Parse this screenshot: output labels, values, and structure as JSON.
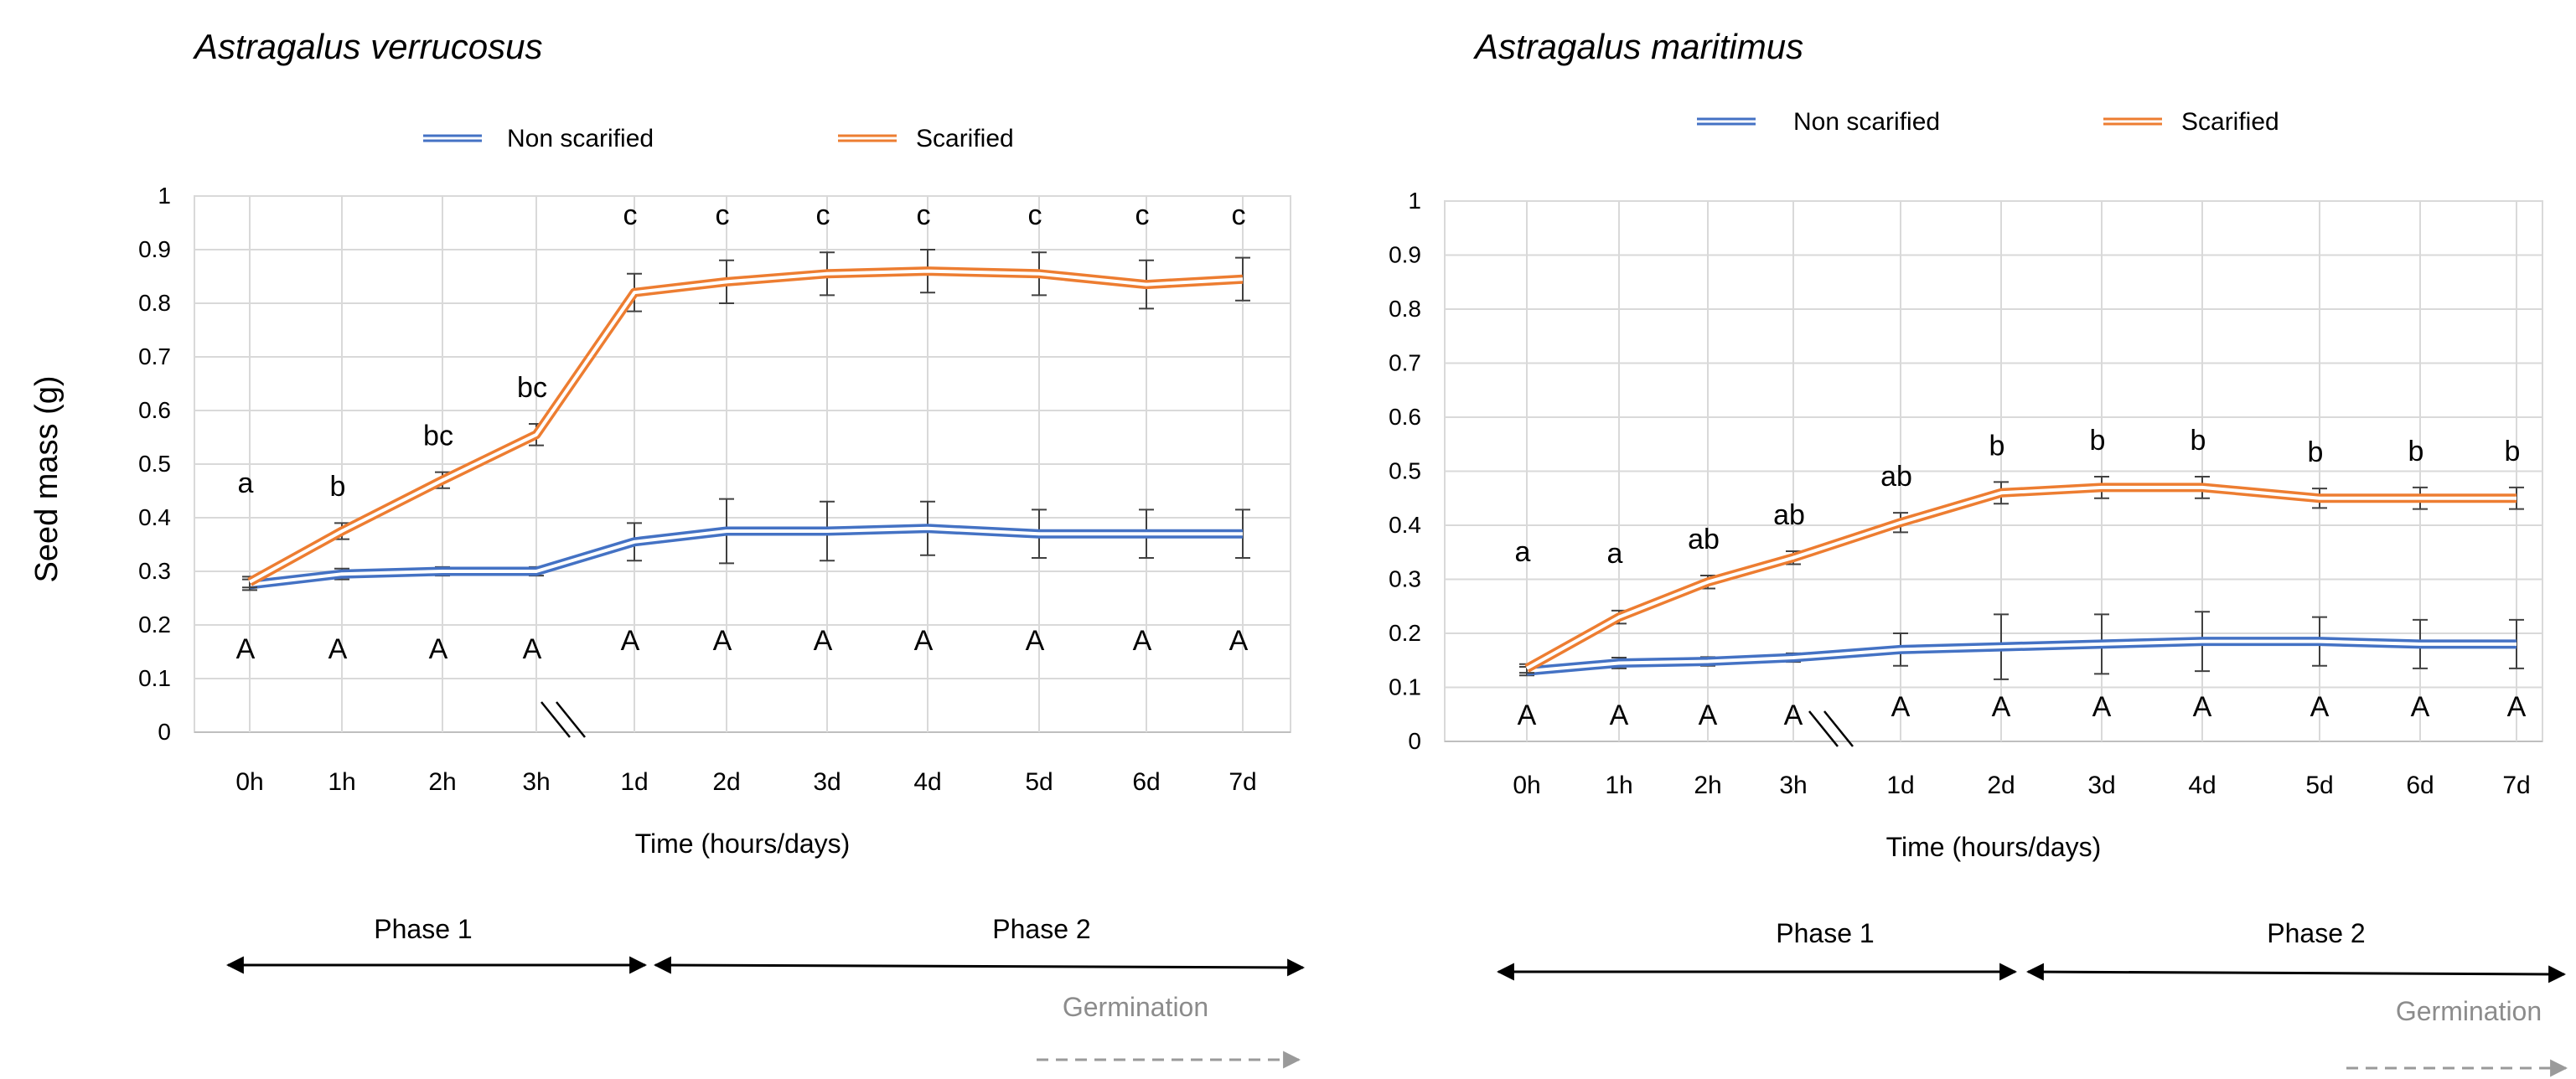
{
  "y_axis_label": "Seed mass (g)",
  "chart_data": [
    {
      "type": "line",
      "title": "Astragalus verrucosus",
      "xlabel": "Time (hours/days)",
      "ylabel": "Seed mass (g)",
      "ylim": [
        0,
        1
      ],
      "yticks": [
        "0",
        "0.1",
        "0.2",
        "0.3",
        "0.4",
        "0.5",
        "0.6",
        "0.7",
        "0.8",
        "0.9",
        "1"
      ],
      "categories": [
        "0h",
        "1h",
        "2h",
        "3h",
        "1d",
        "2d",
        "3d",
        "4d",
        "5d",
        "6d",
        "7d"
      ],
      "series": [
        {
          "name": "Non scarified",
          "color": "#4472C4",
          "values": [
            0.275,
            0.295,
            0.3,
            0.3,
            0.355,
            0.375,
            0.375,
            0.38,
            0.37,
            0.37,
            0.37
          ],
          "errors": [
            0.01,
            0.01,
            0.008,
            0.008,
            0.035,
            0.06,
            0.055,
            0.05,
            0.045,
            0.045,
            0.045
          ],
          "letters": [
            "A",
            "A",
            "A",
            "A",
            "A",
            "A",
            "A",
            "A",
            "A",
            "A",
            "A"
          ]
        },
        {
          "name": "Scarified",
          "color": "#ED7D31",
          "values": [
            0.28,
            0.375,
            0.47,
            0.555,
            0.82,
            0.84,
            0.855,
            0.86,
            0.855,
            0.835,
            0.845
          ],
          "errors": [
            0.01,
            0.015,
            0.015,
            0.02,
            0.035,
            0.04,
            0.04,
            0.04,
            0.04,
            0.045,
            0.04
          ],
          "letters": [
            "a",
            "b",
            "bc",
            "bc",
            "c",
            "c",
            "c",
            "c",
            "c",
            "c",
            "c"
          ]
        }
      ],
      "legend": "top",
      "axis_break": "between 3h and 1d",
      "phases": [
        "Phase 1",
        "Phase 2"
      ],
      "germination_label": "Germination"
    },
    {
      "type": "line",
      "title": "Astragalus maritimus",
      "xlabel": "Time (hours/days)",
      "ylabel": "Seed mass (g)",
      "ylim": [
        0,
        1
      ],
      "yticks": [
        "0",
        "0.1",
        "0.2",
        "0.3",
        "0.4",
        "0.5",
        "0.6",
        "0.7",
        "0.8",
        "0.9",
        "1"
      ],
      "categories": [
        "0h",
        "1h",
        "2h",
        "3h",
        "1d",
        "2d",
        "3d",
        "4d",
        "5d",
        "6d",
        "7d"
      ],
      "series": [
        {
          "name": "Non scarified",
          "color": "#4472C4",
          "values": [
            0.13,
            0.145,
            0.148,
            0.155,
            0.17,
            0.175,
            0.18,
            0.185,
            0.185,
            0.18,
            0.18
          ],
          "errors": [
            0.008,
            0.01,
            0.008,
            0.008,
            0.03,
            0.06,
            0.055,
            0.055,
            0.045,
            0.045,
            0.045
          ],
          "letters": [
            "A",
            "A",
            "A",
            "A",
            "A",
            "A",
            "A",
            "A",
            "A",
            "A",
            "A"
          ]
        },
        {
          "name": "Scarified",
          "color": "#ED7D31",
          "values": [
            0.135,
            0.23,
            0.295,
            0.34,
            0.405,
            0.46,
            0.47,
            0.47,
            0.45,
            0.45,
            0.45
          ],
          "errors": [
            0.008,
            0.012,
            0.012,
            0.012,
            0.018,
            0.02,
            0.02,
            0.02,
            0.018,
            0.02,
            0.02
          ],
          "letters": [
            "a",
            "a",
            "ab",
            "ab",
            "ab",
            "b",
            "b",
            "b",
            "b",
            "b",
            "b"
          ]
        }
      ],
      "legend": "top",
      "axis_break": "between 3h and 1d",
      "phases": [
        "Phase 1",
        "Phase 2"
      ],
      "germination_label": "Germination"
    }
  ]
}
